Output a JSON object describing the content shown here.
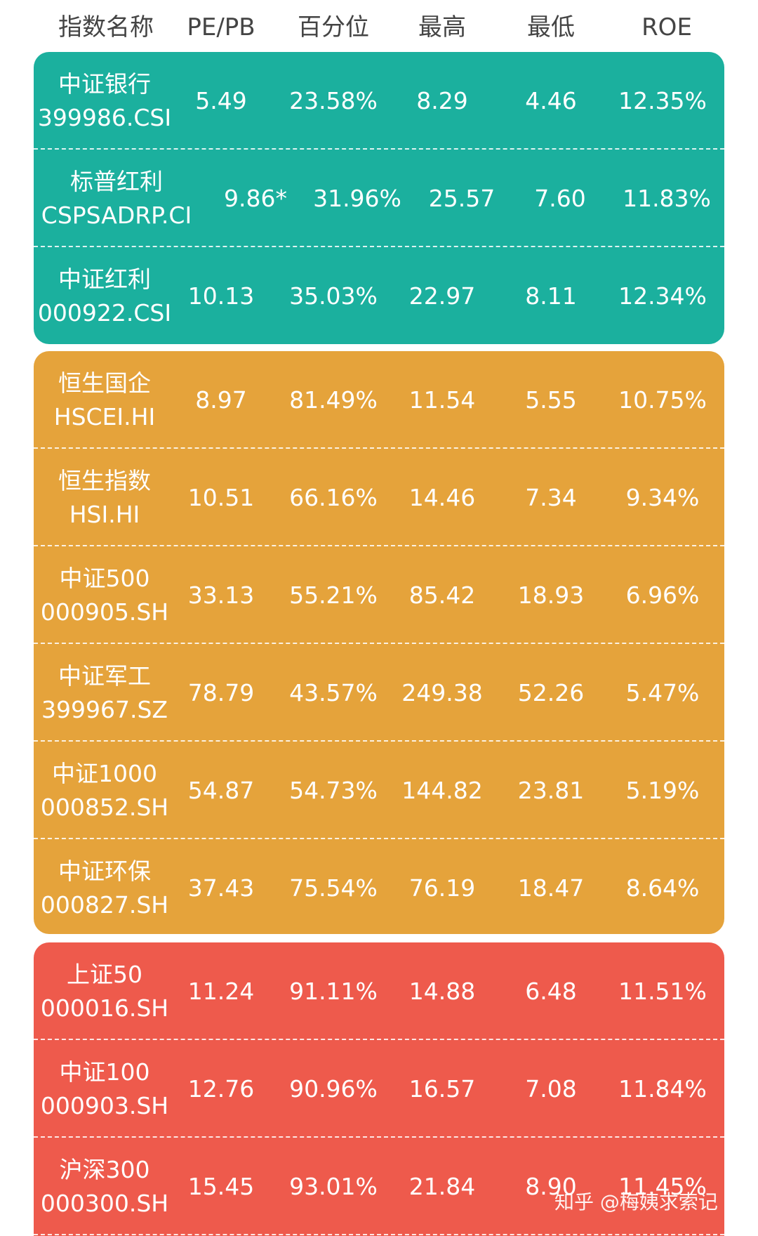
{
  "header": [
    "指数名称",
    "PE/PB",
    "百分位",
    "最高",
    "最低",
    "ROE"
  ],
  "groups": [
    {
      "color": "#1bb09e",
      "rows": [
        {
          "name": "中证银行",
          "code": "399986.CSI",
          "pe_pb": "5.49",
          "percentile": "23.58%",
          "high": "8.29",
          "low": "4.46",
          "roe": "12.35%"
        },
        {
          "name": "标普红利",
          "code": "CSPSADRP.CI",
          "pe_pb": "9.86*",
          "percentile": "31.96%",
          "high": "25.57",
          "low": "7.60",
          "roe": "11.83%"
        },
        {
          "name": "中证红利",
          "code": "000922.CSI",
          "pe_pb": "10.13",
          "percentile": "35.03%",
          "high": "22.97",
          "low": "8.11",
          "roe": "12.34%"
        }
      ]
    },
    {
      "color": "#e5a33b",
      "rows": [
        {
          "name": "恒生国企",
          "code": "HSCEI.HI",
          "pe_pb": "8.97",
          "percentile": "81.49%",
          "high": "11.54",
          "low": "5.55",
          "roe": "10.75%"
        },
        {
          "name": "恒生指数",
          "code": "HSI.HI",
          "pe_pb": "10.51",
          "percentile": "66.16%",
          "high": "14.46",
          "low": "7.34",
          "roe": "9.34%"
        },
        {
          "name": "中证500",
          "code": "000905.SH",
          "pe_pb": "33.13",
          "percentile": "55.21%",
          "high": "85.42",
          "low": "18.93",
          "roe": "6.96%"
        },
        {
          "name": "中证军工",
          "code": "399967.SZ",
          "pe_pb": "78.79",
          "percentile": "43.57%",
          "high": "249.38",
          "low": "52.26",
          "roe": "5.47%"
        },
        {
          "name": "中证1000",
          "code": "000852.SH",
          "pe_pb": "54.87",
          "percentile": "54.73%",
          "high": "144.82",
          "low": "23.81",
          "roe": "5.19%"
        },
        {
          "name": "中证环保",
          "code": "000827.SH",
          "pe_pb": "37.43",
          "percentile": "75.54%",
          "high": "76.19",
          "low": "18.47",
          "roe": "8.64%"
        }
      ]
    },
    {
      "color": "#ee5a4c",
      "rows": [
        {
          "name": "上证50",
          "code": "000016.SH",
          "pe_pb": "11.24",
          "percentile": "91.11%",
          "high": "14.88",
          "low": "6.48",
          "roe": "11.51%"
        },
        {
          "name": "中证100",
          "code": "000903.SH",
          "pe_pb": "12.76",
          "percentile": "90.96%",
          "high": "16.57",
          "low": "7.08",
          "roe": "11.84%"
        },
        {
          "name": "沪深300",
          "code": "000300.SH",
          "pe_pb": "15.45",
          "percentile": "93.01%",
          "high": "21.84",
          "low": "8.90",
          "roe": "11.45%"
        }
      ]
    }
  ],
  "watermark": "知乎 @梅姨求索记"
}
